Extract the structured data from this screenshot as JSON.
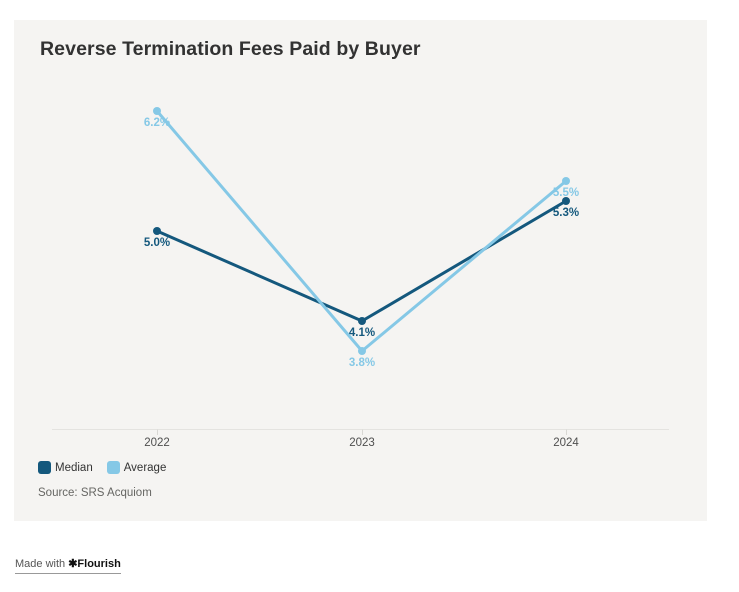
{
  "chart_data": {
    "type": "line",
    "title": "Reverse Termination Fees Paid by Buyer",
    "categories": [
      "2022",
      "2023",
      "2024"
    ],
    "series": [
      {
        "name": "Median",
        "color": "#14587D",
        "values": [
          5.0,
          4.1,
          5.3
        ],
        "point_labels": [
          "5.0%",
          "4.1%",
          "5.3%"
        ]
      },
      {
        "name": "Average",
        "color": "#85C8E6",
        "values": [
          6.2,
          3.8,
          5.5
        ],
        "point_labels": [
          "6.2%",
          "3.8%",
          "5.5%"
        ]
      }
    ],
    "xlabel": "",
    "ylabel": "",
    "y_axis_visible": false,
    "grid": false,
    "legend_position": "bottom-left",
    "source": "Source: SRS Acquiom",
    "axis_line_color": "#e4e3e0",
    "tick_color": "#d9d8d4"
  },
  "footer": {
    "made_with": "Made with",
    "brand_icon": "✱",
    "brand": "Flourish"
  }
}
